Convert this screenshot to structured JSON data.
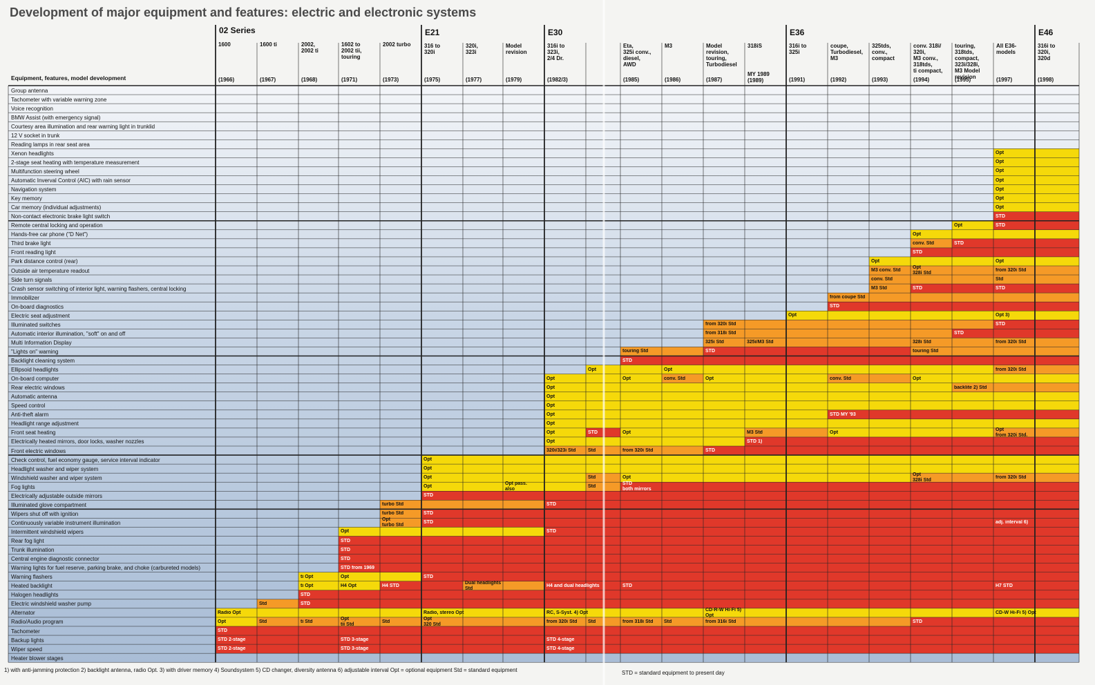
{
  "title": "Development of major equipment and features: electric and electronic systems",
  "column_header": "Equipment, features, model development",
  "colors": {
    "opt": "#f5d90a",
    "std": "#f59a27",
    "STD": "#e0382a",
    "background": "#b8c8dc"
  },
  "series": [
    {
      "name": "02 Series",
      "models": [
        {
          "name": "1600",
          "year": "(1966)"
        },
        {
          "name": "1600 ti",
          "year": "(1967)"
        },
        {
          "name": "2002,\n2002 ti",
          "year": "(1968)"
        },
        {
          "name": "1602 to\n2002 tii,\ntouring",
          "year": "(1971)"
        },
        {
          "name": "2002 turbo",
          "year": "(1973)"
        }
      ]
    },
    {
      "name": "E21",
      "models": [
        {
          "name": "316 to\n320i",
          "year": "(1975)"
        },
        {
          "name": "320i,\n323i",
          "year": "(1977)"
        },
        {
          "name": "Model\nrevision",
          "year": "(1979)"
        }
      ]
    },
    {
      "name": "E30",
      "models": [
        {
          "name": "316i to\n323i,\n2/4 Dr.",
          "year": "(1982/3)"
        },
        {
          "name": "",
          "year": ""
        },
        {
          "name": "Eta,\n325i conv.,\ndiesel,\nAWD",
          "year": "(1985)"
        },
        {
          "name": "M3",
          "year": "(1986)"
        },
        {
          "name": "Model\nrevision,\ntouring,\nTurbodiesel",
          "year": "(1987)"
        },
        {
          "name": "318iS",
          "year": "MY 1989\n(1989)"
        }
      ]
    },
    {
      "name": "E36",
      "models": [
        {
          "name": "316i to\n325i",
          "year": "(1991)"
        },
        {
          "name": "coupe,\nTurbodiesel,\nM3",
          "year": "(1992)"
        },
        {
          "name": "325tds,\nconv.,\ncompact",
          "year": "(1993)"
        },
        {
          "name": "conv. 318i/\n320i,\nM3 conv.,\n318tds,\nti compact,",
          "year": "(1994)"
        },
        {
          "name": "touring,\n318tds,\ncompact,\n323i/328i,\nM3 Model\nrevision",
          "year": "(1995)"
        },
        {
          "name": "All E36-\nmodels",
          "year": "(1997)"
        }
      ]
    },
    {
      "name": "E46",
      "models": [
        {
          "name": "316i to\n320i,\n320d",
          "year": "(1998)"
        }
      ]
    }
  ],
  "features": [
    "Group antenna",
    "Tachometer with variable warning zone",
    "Voice recognition",
    "BMW Assist (with emergency signal)",
    "Courtesy area illumination and rear warning light in trunklid",
    "12 V socket in trunk",
    "Reading lamps in rear seat area",
    "Xenon headlights",
    "2-stage seat heating with temperature measurement",
    "Multifunction steering wheel",
    "Automatic Inverval Control (AIC) with rain sensor",
    "Navigation system",
    "Key memory",
    "Car memory (individual adjustments)",
    "Non-contact electronic brake light switch",
    "Remote central locking and operation",
    "Hands-free car phone (\"D Net\")",
    "Third brake light",
    "Front reading light",
    "Park distance control (rear)",
    "Outside air temperature readout",
    "Side turn signals",
    "Crash sensor switching of interior light, warning flashers, central locking",
    "Immobilizer",
    "On-board diagnostics",
    "Electric seat adjustment",
    "Illuminated switches",
    "Automatic interior illumination, \"soft\" on and off",
    "Multi Information Display",
    "\"Lights on\" warning",
    "Backlight cleaning system",
    "Ellipsoid headlights",
    "On-board computer",
    "Rear electric windows",
    "Automatic antenna",
    "Speed control",
    "Anti-theft alarm",
    "Headlight range adjustment",
    "Front seat heating",
    "Electrically heated mirrors, door locks, washer nozzles",
    "Front electric windows",
    "Check control, fuel economy gauge, service interval indicator",
    "Headlight washer and wiper system",
    "Windshield washer and wiper system",
    "Fog lights",
    "Electrically adjustable outside mirrors",
    "Illuminated glove compartment",
    "Wipers shut off with ignition",
    "Continuously variable instrument illumination",
    "Intermittent windshield wipers",
    "Rear fog light",
    "Trunk illumination",
    "Central engine diagnostic connector",
    "Warning lights for fuel reserve, parking brake, and choke (carbureted models)",
    "Warning flashers",
    "Heated backlight",
    "Halogen headlights",
    "Electric windshield washer pump",
    "Alternator",
    "Radio/Audio program",
    "Tachometer",
    "Backup lights",
    "Wiper speed",
    "Heater blower stages"
  ],
  "cells": [
    [
      7,
      19,
      "Opt",
      "opt"
    ],
    [
      8,
      19,
      "Opt",
      "opt"
    ],
    [
      9,
      19,
      "Opt",
      "opt"
    ],
    [
      10,
      19,
      "Opt",
      "opt"
    ],
    [
      11,
      19,
      "Opt",
      "opt"
    ],
    [
      12,
      19,
      "Opt",
      "opt"
    ],
    [
      13,
      19,
      "Opt",
      "opt"
    ],
    [
      14,
      19,
      "STD",
      "STD"
    ],
    [
      15,
      18,
      "Opt",
      "opt"
    ],
    [
      15,
      19,
      "STD",
      "STD"
    ],
    [
      16,
      17,
      "Opt",
      "opt"
    ],
    [
      17,
      17,
      "conv. Std",
      "std"
    ],
    [
      17,
      18,
      "STD",
      "STD"
    ],
    [
      18,
      17,
      "STD",
      "STD"
    ],
    [
      19,
      16,
      "Opt",
      "opt"
    ],
    [
      19,
      19,
      "Opt",
      "opt"
    ],
    [
      20,
      16,
      "M3 conv. Std",
      "std"
    ],
    [
      20,
      17,
      "Opt\n328i Std",
      "std"
    ],
    [
      20,
      19,
      "from 320i Std",
      "std"
    ],
    [
      21,
      16,
      "conv. Std",
      "std"
    ],
    [
      21,
      19,
      "Std",
      "std"
    ],
    [
      22,
      16,
      "M3 Std",
      "std"
    ],
    [
      22,
      17,
      "STD",
      "STD"
    ],
    [
      22,
      19,
      "STD",
      "STD"
    ],
    [
      23,
      15,
      "from coupe Std",
      "std"
    ],
    [
      24,
      15,
      "STD",
      "STD"
    ],
    [
      25,
      14,
      "Opt",
      "opt"
    ],
    [
      25,
      19,
      "Opt 3)",
      "opt"
    ],
    [
      26,
      12,
      "from 320i Std",
      "std"
    ],
    [
      26,
      19,
      "STD",
      "STD"
    ],
    [
      27,
      12,
      "from 318i Std",
      "std"
    ],
    [
      27,
      18,
      "STD",
      "STD"
    ],
    [
      28,
      12,
      "325i Std",
      "std"
    ],
    [
      28,
      13,
      "325i/M3 Std",
      "std"
    ],
    [
      28,
      17,
      "328i Std",
      "std"
    ],
    [
      28,
      19,
      "from 320i Std",
      "std"
    ],
    [
      29,
      12,
      "STD",
      "STD"
    ],
    [
      29,
      10,
      "touring Std",
      "std"
    ],
    [
      29,
      17,
      "touring Std",
      "std"
    ],
    [
      30,
      10,
      "STD",
      "STD"
    ],
    [
      31,
      9,
      "Opt",
      "opt"
    ],
    [
      31,
      11,
      "Opt",
      "opt"
    ],
    [
      31,
      19,
      "from 320i Std",
      "std"
    ],
    [
      32,
      8,
      "Opt",
      "opt"
    ],
    [
      32,
      10,
      "Opt",
      "opt"
    ],
    [
      32,
      11,
      "conv. Std",
      "std"
    ],
    [
      32,
      12,
      "Opt",
      "opt"
    ],
    [
      32,
      15,
      "conv. Std",
      "std"
    ],
    [
      32,
      17,
      "Opt",
      "opt"
    ],
    [
      33,
      8,
      "Opt",
      "opt"
    ],
    [
      33,
      18,
      "backlite 2) Std",
      "std"
    ],
    [
      34,
      8,
      "Opt",
      "opt"
    ],
    [
      35,
      8,
      "Opt",
      "opt"
    ],
    [
      36,
      8,
      "Opt",
      "opt"
    ],
    [
      36,
      15,
      "STD MY '93",
      "STD"
    ],
    [
      37,
      8,
      "Opt",
      "opt"
    ],
    [
      38,
      8,
      "Opt",
      "opt"
    ],
    [
      38,
      9,
      "STD",
      "STD"
    ],
    [
      38,
      10,
      "Opt",
      "opt"
    ],
    [
      38,
      13,
      "M3 Std",
      "std"
    ],
    [
      38,
      15,
      "Opt",
      "opt"
    ],
    [
      38,
      19,
      "Opt\nfrom 320i Std.",
      "std"
    ],
    [
      39,
      8,
      "Opt",
      "opt"
    ],
    [
      39,
      13,
      "STD 1)",
      "STD"
    ],
    [
      40,
      8,
      "320i/323i Std",
      "std"
    ],
    [
      40,
      9,
      "Std",
      "std"
    ],
    [
      40,
      10,
      "from 320i Std",
      "std"
    ],
    [
      40,
      12,
      "STD",
      "STD"
    ],
    [
      41,
      5,
      "Opt",
      "opt"
    ],
    [
      42,
      5,
      "Opt",
      "opt"
    ],
    [
      43,
      5,
      "Opt",
      "opt"
    ],
    [
      43,
      9,
      "Std",
      "std"
    ],
    [
      43,
      10,
      "Opt",
      "opt"
    ],
    [
      43,
      17,
      "Opt\n328i Std",
      "std"
    ],
    [
      43,
      19,
      "from 320i Std",
      "std"
    ],
    [
      44,
      5,
      "Opt",
      "opt"
    ],
    [
      44,
      7,
      "Opt pass.\nalso",
      "opt"
    ],
    [
      44,
      9,
      "Std",
      "std"
    ],
    [
      44,
      10,
      "STD\nboth mirrors",
      "STD"
    ],
    [
      45,
      5,
      "STD",
      "STD"
    ],
    [
      46,
      4,
      "turbo Std",
      "std"
    ],
    [
      46,
      8,
      "STD",
      "STD"
    ],
    [
      47,
      4,
      "turbo Std",
      "std"
    ],
    [
      47,
      5,
      "STD",
      "STD"
    ],
    [
      48,
      4,
      "Opt\nturbo Std",
      "std"
    ],
    [
      48,
      5,
      "STD",
      "STD"
    ],
    [
      48,
      19,
      "adj. interval 6)",
      "STD"
    ],
    [
      49,
      3,
      "Opt",
      "opt"
    ],
    [
      49,
      8,
      "STD",
      "STD"
    ],
    [
      50,
      3,
      "STD",
      "STD"
    ],
    [
      51,
      3,
      "STD",
      "STD"
    ],
    [
      52,
      3,
      "STD",
      "STD"
    ],
    [
      53,
      3,
      "STD from 1969",
      "STD"
    ],
    [
      54,
      2,
      "ti Opt",
      "opt"
    ],
    [
      54,
      3,
      "Opt",
      "opt"
    ],
    [
      54,
      5,
      "STD",
      "STD"
    ],
    [
      55,
      2,
      "ti Opt",
      "opt"
    ],
    [
      55,
      3,
      "H4 Opt",
      "opt"
    ],
    [
      55,
      4,
      "H4 STD",
      "STD"
    ],
    [
      55,
      6,
      "Dual headlights\nStd",
      "std"
    ],
    [
      55,
      8,
      "H4 and dual headlights",
      "STD"
    ],
    [
      55,
      10,
      "STD",
      "STD"
    ],
    [
      55,
      19,
      "H7 STD",
      "STD"
    ],
    [
      56,
      2,
      "STD",
      "STD"
    ],
    [
      57,
      1,
      "Std",
      "std"
    ],
    [
      57,
      2,
      "STD",
      "STD"
    ],
    [
      58,
      0,
      "Radio Opt",
      "opt"
    ],
    [
      58,
      5,
      "Radio, stereo Opt",
      "opt"
    ],
    [
      58,
      8,
      "RC, S-Syst. 4) Opt",
      "opt"
    ],
    [
      58,
      12,
      "CD-R-W Hi-Fi 5)\nOpt",
      "opt"
    ],
    [
      58,
      19,
      "CD-W Hi-Fi 5) Opt",
      "opt"
    ],
    [
      59,
      0,
      "Opt",
      "opt"
    ],
    [
      59,
      1,
      "Std",
      "std"
    ],
    [
      59,
      2,
      "ti Std",
      "std"
    ],
    [
      59,
      3,
      "Opt\ntii Std",
      "std"
    ],
    [
      59,
      4,
      "Std",
      "std"
    ],
    [
      59,
      5,
      "Opt\n320 Std",
      "std"
    ],
    [
      59,
      8,
      "from 320i Std",
      "std"
    ],
    [
      59,
      9,
      "Std",
      "std"
    ],
    [
      59,
      10,
      "from 318i Std",
      "std"
    ],
    [
      59,
      11,
      "Std",
      "std"
    ],
    [
      59,
      12,
      "from 316i Std",
      "std"
    ],
    [
      59,
      17,
      "STD",
      "STD"
    ],
    [
      60,
      0,
      "STD",
      "STD"
    ],
    [
      61,
      0,
      "STD 2-stage",
      "STD"
    ],
    [
      61,
      3,
      "STD 3-stage",
      "STD"
    ],
    [
      61,
      8,
      "STD 4-stage",
      "STD"
    ],
    [
      62,
      0,
      "STD 2-stage",
      "STD"
    ],
    [
      62,
      3,
      "STD 3-stage",
      "STD"
    ],
    [
      62,
      8,
      "STD 4-stage",
      "STD"
    ]
  ],
  "footnotes": "1) with anti-jamming protection   2) backlight antenna, radio Opt.   3) with driver memory   4) Soundsystem   5) CD changer, diversity antenna   6) adjustable interval Opt = optional equipment   Std = standard equipment",
  "footnote_right": "STD = standard equipment to present day"
}
